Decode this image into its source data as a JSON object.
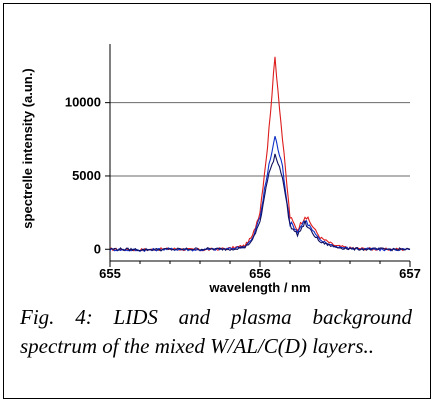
{
  "chart_data": {
    "type": "line",
    "xlabel": "wavelength / nm",
    "ylabel": "spectrelle intensity (a.un.)",
    "xlim": [
      655,
      657
    ],
    "ylim": [
      -800,
      14000
    ],
    "x_ticks": [
      "655",
      "656",
      "657"
    ],
    "y_ticks": [
      0,
      5000,
      10000
    ],
    "grid": "horizontal",
    "legend": "none",
    "series": [
      {
        "color": "#dd1c1c",
        "points": [
          [
            655.0,
            0
          ],
          [
            655.2,
            -40
          ],
          [
            655.4,
            30
          ],
          [
            655.6,
            -50
          ],
          [
            655.8,
            60
          ],
          [
            655.9,
            250
          ],
          [
            655.95,
            900
          ],
          [
            656.0,
            2600
          ],
          [
            656.05,
            7000
          ],
          [
            656.1,
            13100
          ],
          [
            656.15,
            7500
          ],
          [
            656.2,
            2200
          ],
          [
            656.25,
            1300
          ],
          [
            656.3,
            2300
          ],
          [
            656.35,
            1600
          ],
          [
            656.4,
            800
          ],
          [
            656.5,
            250
          ],
          [
            656.6,
            80
          ],
          [
            656.8,
            0
          ],
          [
            657.0,
            0
          ]
        ]
      },
      {
        "color": "#1030c8",
        "points": [
          [
            655.0,
            -20
          ],
          [
            655.2,
            -60
          ],
          [
            655.4,
            10
          ],
          [
            655.6,
            -40
          ],
          [
            655.8,
            30
          ],
          [
            655.9,
            200
          ],
          [
            655.95,
            700
          ],
          [
            656.0,
            2200
          ],
          [
            656.05,
            5200
          ],
          [
            656.1,
            7700
          ],
          [
            656.15,
            5600
          ],
          [
            656.2,
            1800
          ],
          [
            656.25,
            1200
          ],
          [
            656.3,
            2000
          ],
          [
            656.35,
            1300
          ],
          [
            656.4,
            600
          ],
          [
            656.5,
            200
          ],
          [
            656.6,
            50
          ],
          [
            656.8,
            -20
          ],
          [
            657.0,
            -20
          ]
        ]
      },
      {
        "color": "#101060",
        "points": [
          [
            655.0,
            20
          ],
          [
            655.2,
            -30
          ],
          [
            655.4,
            -10
          ],
          [
            655.6,
            20
          ],
          [
            655.8,
            10
          ],
          [
            655.9,
            150
          ],
          [
            655.95,
            600
          ],
          [
            656.0,
            1900
          ],
          [
            656.05,
            4700
          ],
          [
            656.1,
            6500
          ],
          [
            656.15,
            5000
          ],
          [
            656.2,
            1600
          ],
          [
            656.25,
            1000
          ],
          [
            656.3,
            1800
          ],
          [
            656.35,
            1100
          ],
          [
            656.4,
            500
          ],
          [
            656.5,
            150
          ],
          [
            656.6,
            30
          ],
          [
            656.8,
            0
          ],
          [
            657.0,
            0
          ]
        ]
      }
    ]
  },
  "caption": "Fig. 4: LIDS and plasma background spectrum of the mixed W/AL/C(D) layers.."
}
